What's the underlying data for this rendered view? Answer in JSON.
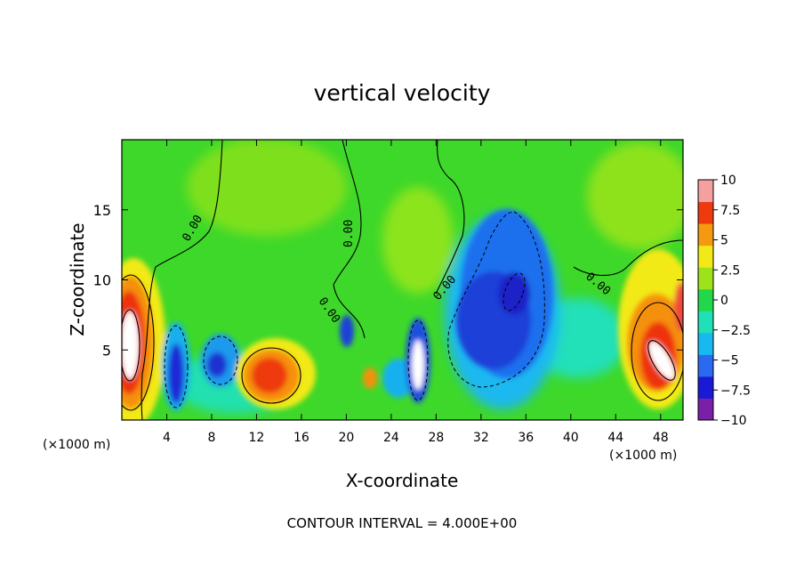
{
  "chart_data": {
    "type": "heatmap",
    "title": "vertical velocity",
    "xlabel": "X-coordinate",
    "ylabel": "Z-coordinate",
    "x_unit": "(×1000 m)",
    "xlim": [
      0,
      50
    ],
    "ylim": [
      0,
      20
    ],
    "x_ticks": [
      4,
      8,
      12,
      16,
      20,
      24,
      28,
      32,
      36,
      40,
      44,
      48
    ],
    "y_ticks": [
      5,
      10,
      15
    ],
    "footer": "CONTOUR INTERVAL = 4.000E+00",
    "contour_label": "0.00",
    "colorbar": {
      "ticks": [
        "10",
        "7.5",
        "5",
        "2.5",
        "0",
        "−2.5",
        "−5",
        "−7.5",
        "−10"
      ],
      "range": [
        -10,
        10
      ],
      "colors": [
        "#7a1fa8",
        "#1a1ad6",
        "#2a6af0",
        "#18b8f0",
        "#20e0b8",
        "#22d84a",
        "#9ee21a",
        "#f2ea16",
        "#f59a10",
        "#ef3a10",
        "#f5a0a0"
      ]
    },
    "features": [
      {
        "x": 1.0,
        "z": 5.5,
        "w": 10.0,
        "sign": "positive"
      },
      {
        "x": 5.0,
        "z": 3.5,
        "w": -8.0,
        "sign": "negative"
      },
      {
        "x": 9.0,
        "z": 4.2,
        "w": -7.0,
        "sign": "negative"
      },
      {
        "x": 13.5,
        "z": 3.5,
        "w": 7.0,
        "sign": "positive"
      },
      {
        "x": 19.5,
        "z": 6.0,
        "w": -5.0,
        "sign": "negative"
      },
      {
        "x": 22.0,
        "z": 3.0,
        "w": 5.0,
        "sign": "positive"
      },
      {
        "x": 26.5,
        "z": 4.0,
        "w": -9.0,
        "sign": "negative"
      },
      {
        "x": 35.0,
        "z": 9.0,
        "w": -8.0,
        "sign": "negative"
      },
      {
        "x": 47.5,
        "z": 5.0,
        "w": 10.0,
        "sign": "positive"
      },
      {
        "x": 49.5,
        "z": 8.0,
        "w": 8.0,
        "sign": "positive"
      }
    ]
  }
}
